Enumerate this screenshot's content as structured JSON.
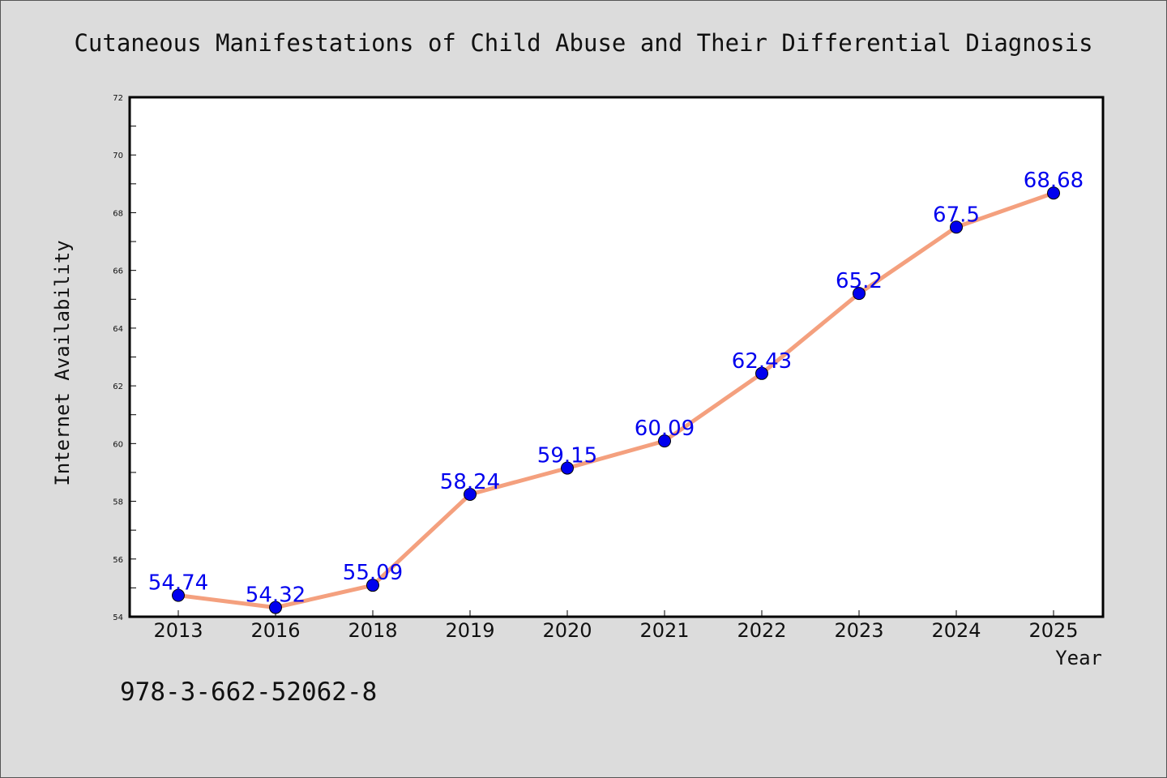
{
  "chart_data": {
    "type": "line",
    "title": "Cutaneous Manifestations of Child Abuse and Their Differential Diagnosis",
    "xlabel": "Year",
    "ylabel": "Internet Availability",
    "categories": [
      "2013",
      "2016",
      "2018",
      "2019",
      "2020",
      "2021",
      "2022",
      "2023",
      "2024",
      "2025"
    ],
    "series": [
      {
        "values": [
          54.74,
          54.32,
          55.09,
          58.24,
          59.15,
          60.09,
          62.43,
          65.2,
          67.5,
          68.68
        ],
        "labels": [
          "54.74",
          "54.32",
          "55.09",
          "58.24",
          "59.15",
          "60.09",
          "62.43",
          "65.2",
          "67.5",
          "68.68"
        ],
        "line_color": "#f4a07e",
        "marker_color": "#0000ee",
        "label_color": "#0000ee"
      }
    ],
    "ylim": [
      54,
      72
    ],
    "yticks": [
      54,
      56,
      58,
      60,
      62,
      64,
      66,
      68,
      70,
      72
    ],
    "grid": false,
    "legend": "none"
  },
  "footnote": "978-3-662-52062-8",
  "colors": {
    "background": "#dcdcdc",
    "plot_background": "#ffffff",
    "axis": "#000000"
  }
}
